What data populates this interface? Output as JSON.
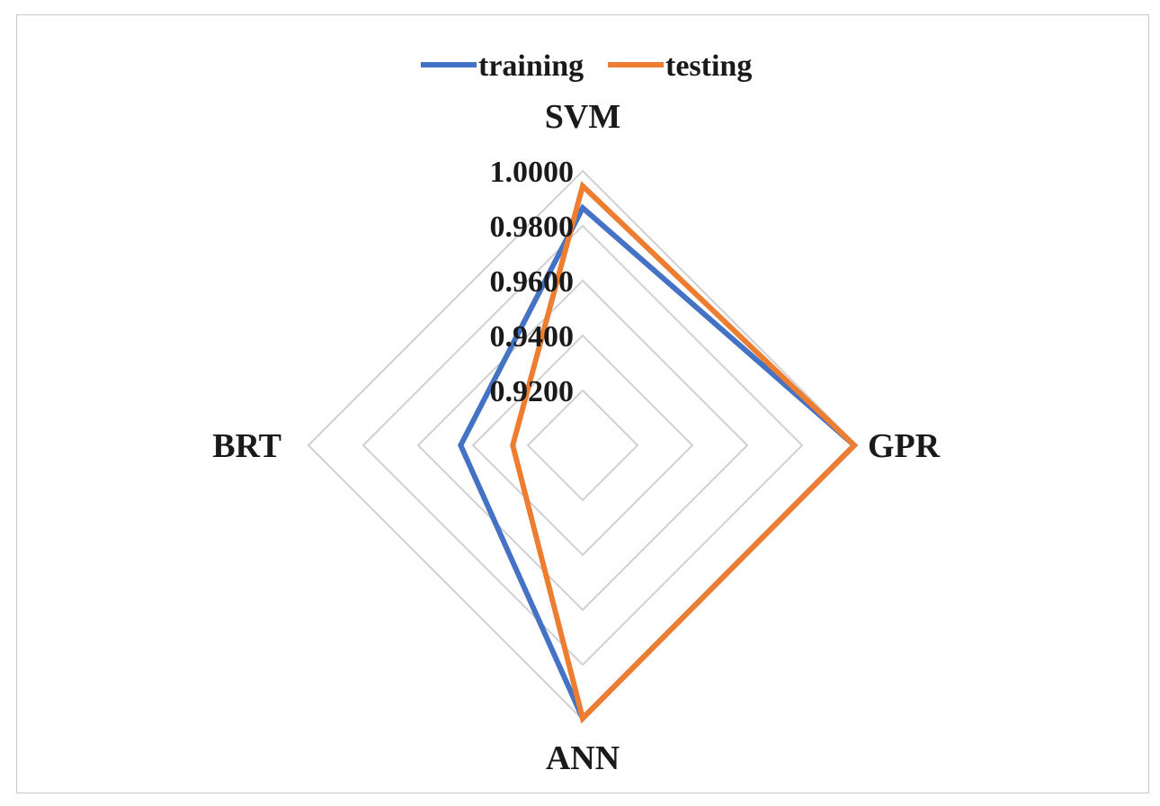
{
  "chart_data": {
    "type": "radar",
    "categories": [
      "SVM",
      "GPR",
      "ANN",
      "BRT"
    ],
    "series": [
      {
        "name": "training",
        "color": "#4472C4",
        "values": [
          0.9865,
          0.999,
          0.9995,
          0.9445
        ]
      },
      {
        "name": "testing",
        "color": "#ED7D31",
        "values": [
          0.9945,
          0.999,
          0.9995,
          0.9255
        ]
      }
    ],
    "rlim": [
      0.9,
      1.0
    ],
    "ticks": [
      "0.9200",
      "0.9400",
      "0.9600",
      "0.9800",
      "1.0000"
    ],
    "tick_values": [
      0.92,
      0.94,
      0.96,
      0.98,
      1.0
    ],
    "legend": "top",
    "grid": true
  }
}
